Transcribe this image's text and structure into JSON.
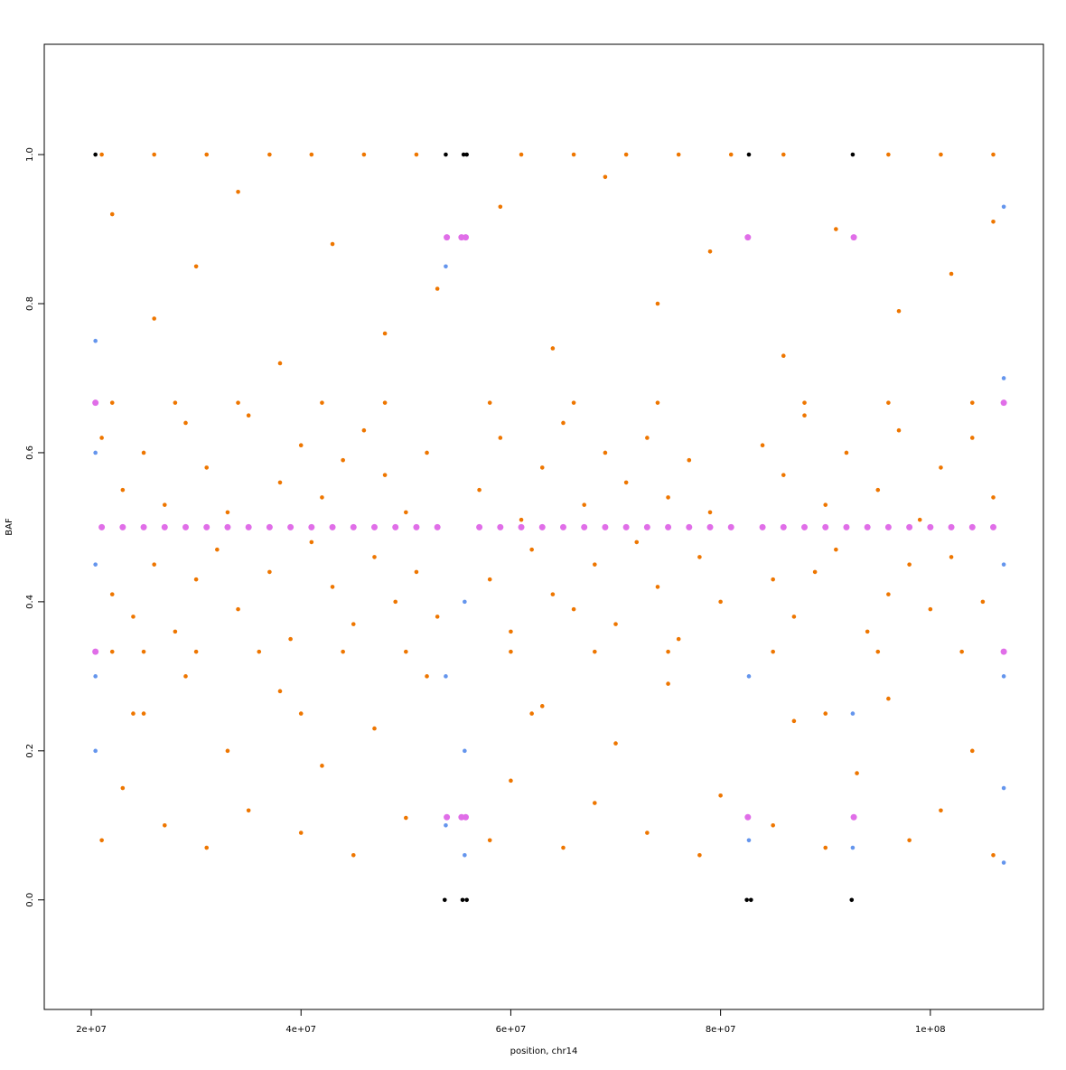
{
  "chart_data": {
    "type": "scatter",
    "x_label": "position, chr14",
    "y_label": "BAF",
    "xlim": [
      15520000,
      110780000
    ],
    "ylim": [
      -0.147,
      1.148
    ],
    "xticks": [
      {
        "value": 20000000,
        "label": "2e+07"
      },
      {
        "value": 40000000,
        "label": "4e+07"
      },
      {
        "value": 60000000,
        "label": "6e+07"
      },
      {
        "value": 80000000,
        "label": "8e+07"
      },
      {
        "value": 100000000,
        "label": "1e+08"
      }
    ],
    "yticks": [
      {
        "value": 0,
        "label": "0.0"
      },
      0.2,
      0.4,
      0.6,
      0.8,
      {
        "value": 1,
        "label": "1.0"
      }
    ],
    "series": [
      {
        "color": "#ee7600",
        "x": [
          21000000,
          22000000,
          23000000,
          24000000,
          25000000,
          26000000,
          27000000,
          28000000,
          29000000,
          30000000,
          31000000,
          32000000,
          33000000,
          34000000,
          35000000,
          37000000,
          38000000,
          39000000,
          40000000,
          41000000,
          42000000,
          43000000,
          44000000,
          45000000,
          46000000,
          47000000,
          48000000,
          49000000,
          50000000,
          51000000,
          52000000,
          53000000,
          57000000,
          58000000,
          59000000,
          60000000,
          61000000,
          62000000,
          63000000,
          64000000,
          65000000,
          66000000,
          67000000,
          68000000,
          69000000,
          70000000,
          71000000,
          72000000,
          73000000,
          74000000,
          75000000,
          76000000,
          77000000,
          78000000,
          79000000,
          80000000,
          84000000,
          85000000,
          86000000,
          87000000,
          88000000,
          89000000,
          90000000,
          91000000,
          92000000,
          94000000,
          95000000,
          96000000,
          97000000,
          98000000,
          99000000,
          100000000,
          101000000,
          102000000,
          104000000,
          105000000,
          106000000,
          21000000,
          23000000,
          25000000,
          27000000,
          29000000,
          31000000,
          33000000,
          35000000,
          38000000,
          40000000,
          42000000,
          45000000,
          47000000,
          50000000,
          52000000,
          58000000,
          60000000,
          63000000,
          65000000,
          68000000,
          70000000,
          73000000,
          75000000,
          78000000,
          80000000,
          85000000,
          87000000,
          90000000,
          93000000,
          96000000,
          98000000,
          101000000,
          104000000,
          106000000,
          22000000,
          25000000,
          30000000,
          36000000,
          44000000,
          50000000,
          60000000,
          68000000,
          75000000,
          85000000,
          95000000,
          103000000,
          22000000,
          28000000,
          34000000,
          42000000,
          48000000,
          58000000,
          66000000,
          74000000,
          88000000,
          96000000,
          104000000,
          24000000,
          40000000,
          62000000,
          90000000,
          22000000,
          26000000,
          30000000,
          34000000,
          38000000,
          43000000,
          48000000,
          53000000,
          59000000,
          64000000,
          69000000,
          74000000,
          79000000,
          86000000,
          91000000,
          97000000,
          102000000,
          106000000,
          21000000,
          26000000,
          31000000,
          37000000,
          41000000,
          46000000,
          51000000,
          61000000,
          66000000,
          71000000,
          76000000,
          81000000,
          86000000,
          96000000,
          101000000,
          106000000
        ],
        "values": [
          0.62,
          0.41,
          0.55,
          0.38,
          0.6,
          0.45,
          0.53,
          0.36,
          0.64,
          0.43,
          0.58,
          0.47,
          0.52,
          0.39,
          0.65,
          0.44,
          0.56,
          0.35,
          0.61,
          0.48,
          0.54,
          0.42,
          0.59,
          0.37,
          0.63,
          0.46,
          0.57,
          0.4,
          0.52,
          0.44,
          0.6,
          0.38,
          0.55,
          0.43,
          0.62,
          0.36,
          0.51,
          0.47,
          0.58,
          0.41,
          0.64,
          0.39,
          0.53,
          0.45,
          0.6,
          0.37,
          0.56,
          0.48,
          0.62,
          0.42,
          0.54,
          0.35,
          0.59,
          0.46,
          0.52,
          0.4,
          0.61,
          0.43,
          0.57,
          0.38,
          0.65,
          0.44,
          0.53,
          0.47,
          0.6,
          0.36,
          0.55,
          0.41,
          0.63,
          0.45,
          0.51,
          0.39,
          0.58,
          0.46,
          0.62,
          0.4,
          0.54,
          0.08,
          0.15,
          0.25,
          0.1,
          0.3,
          0.07,
          0.2,
          0.12,
          0.28,
          0.09,
          0.18,
          0.06,
          0.23,
          0.11,
          0.3,
          0.08,
          0.16,
          0.26,
          0.07,
          0.13,
          0.21,
          0.09,
          0.29,
          0.06,
          0.14,
          0.1,
          0.24,
          0.07,
          0.17,
          0.27,
          0.08,
          0.12,
          0.2,
          0.06,
          0.333,
          0.333,
          0.333,
          0.333,
          0.333,
          0.333,
          0.333,
          0.333,
          0.333,
          0.333,
          0.333,
          0.333,
          0.667,
          0.667,
          0.667,
          0.667,
          0.667,
          0.667,
          0.667,
          0.667,
          0.667,
          0.667,
          0.667,
          0.25,
          0.25,
          0.25,
          0.25,
          0.92,
          0.78,
          0.85,
          0.95,
          0.72,
          0.88,
          0.76,
          0.82,
          0.93,
          0.74,
          0.97,
          0.8,
          0.87,
          0.73,
          0.9,
          0.79,
          0.84,
          0.91,
          1,
          1,
          1,
          1,
          1,
          1,
          1,
          1,
          1,
          1,
          1,
          1,
          1,
          1,
          1,
          1
        ]
      },
      {
        "color": "#6495ed",
        "x": [
          20400000,
          20400000,
          20400000,
          20400000,
          20400000,
          53800000,
          53800000,
          53800000,
          55600000,
          55600000,
          55600000,
          82700000,
          82700000,
          92600000,
          92600000,
          107000000,
          107000000,
          107000000,
          107000000,
          107000000,
          107000000
        ],
        "values": [
          0.2,
          0.3,
          0.45,
          0.6,
          0.75,
          0.1,
          0.3,
          0.85,
          0.06,
          0.2,
          0.4,
          0.08,
          0.3,
          0.07,
          0.25,
          0.05,
          0.15,
          0.3,
          0.45,
          0.7,
          0.93
        ]
      },
      {
        "color": "#000000",
        "x": [
          53700000,
          55400000,
          55800000,
          82500000,
          82900000,
          92500000,
          20400000,
          53800000,
          55500000,
          55800000,
          82700000,
          92600000
        ],
        "values": [
          0,
          0,
          0,
          0,
          0,
          0,
          1,
          1,
          1,
          1,
          1,
          1
        ]
      },
      {
        "color": "#e06ee8",
        "x": [
          21000000,
          23000000,
          25000000,
          27000000,
          29000000,
          31000000,
          33000000,
          35000000,
          37000000,
          39000000,
          41000000,
          43000000,
          45000000,
          47000000,
          49000000,
          51000000,
          53000000,
          57000000,
          59000000,
          61000000,
          63000000,
          65000000,
          67000000,
          69000000,
          71000000,
          73000000,
          75000000,
          77000000,
          79000000,
          81000000,
          84000000,
          86000000,
          88000000,
          90000000,
          92000000,
          94000000,
          96000000,
          98000000,
          100000000,
          102000000,
          104000000,
          106000000,
          53900000,
          55300000,
          55700000,
          82600000,
          92700000,
          53900000,
          55300000,
          55700000,
          82600000,
          92700000,
          20400000,
          20400000,
          107000000,
          107000000
        ],
        "values": [
          0.5,
          0.5,
          0.5,
          0.5,
          0.5,
          0.5,
          0.5,
          0.5,
          0.5,
          0.5,
          0.5,
          0.5,
          0.5,
          0.5,
          0.5,
          0.5,
          0.5,
          0.5,
          0.5,
          0.5,
          0.5,
          0.5,
          0.5,
          0.5,
          0.5,
          0.5,
          0.5,
          0.5,
          0.5,
          0.5,
          0.5,
          0.5,
          0.5,
          0.5,
          0.5,
          0.5,
          0.5,
          0.5,
          0.5,
          0.5,
          0.5,
          0.5,
          0.889,
          0.889,
          0.889,
          0.889,
          0.889,
          0.111,
          0.111,
          0.111,
          0.111,
          0.111,
          0.667,
          0.333,
          0.667,
          0.333
        ]
      }
    ]
  }
}
